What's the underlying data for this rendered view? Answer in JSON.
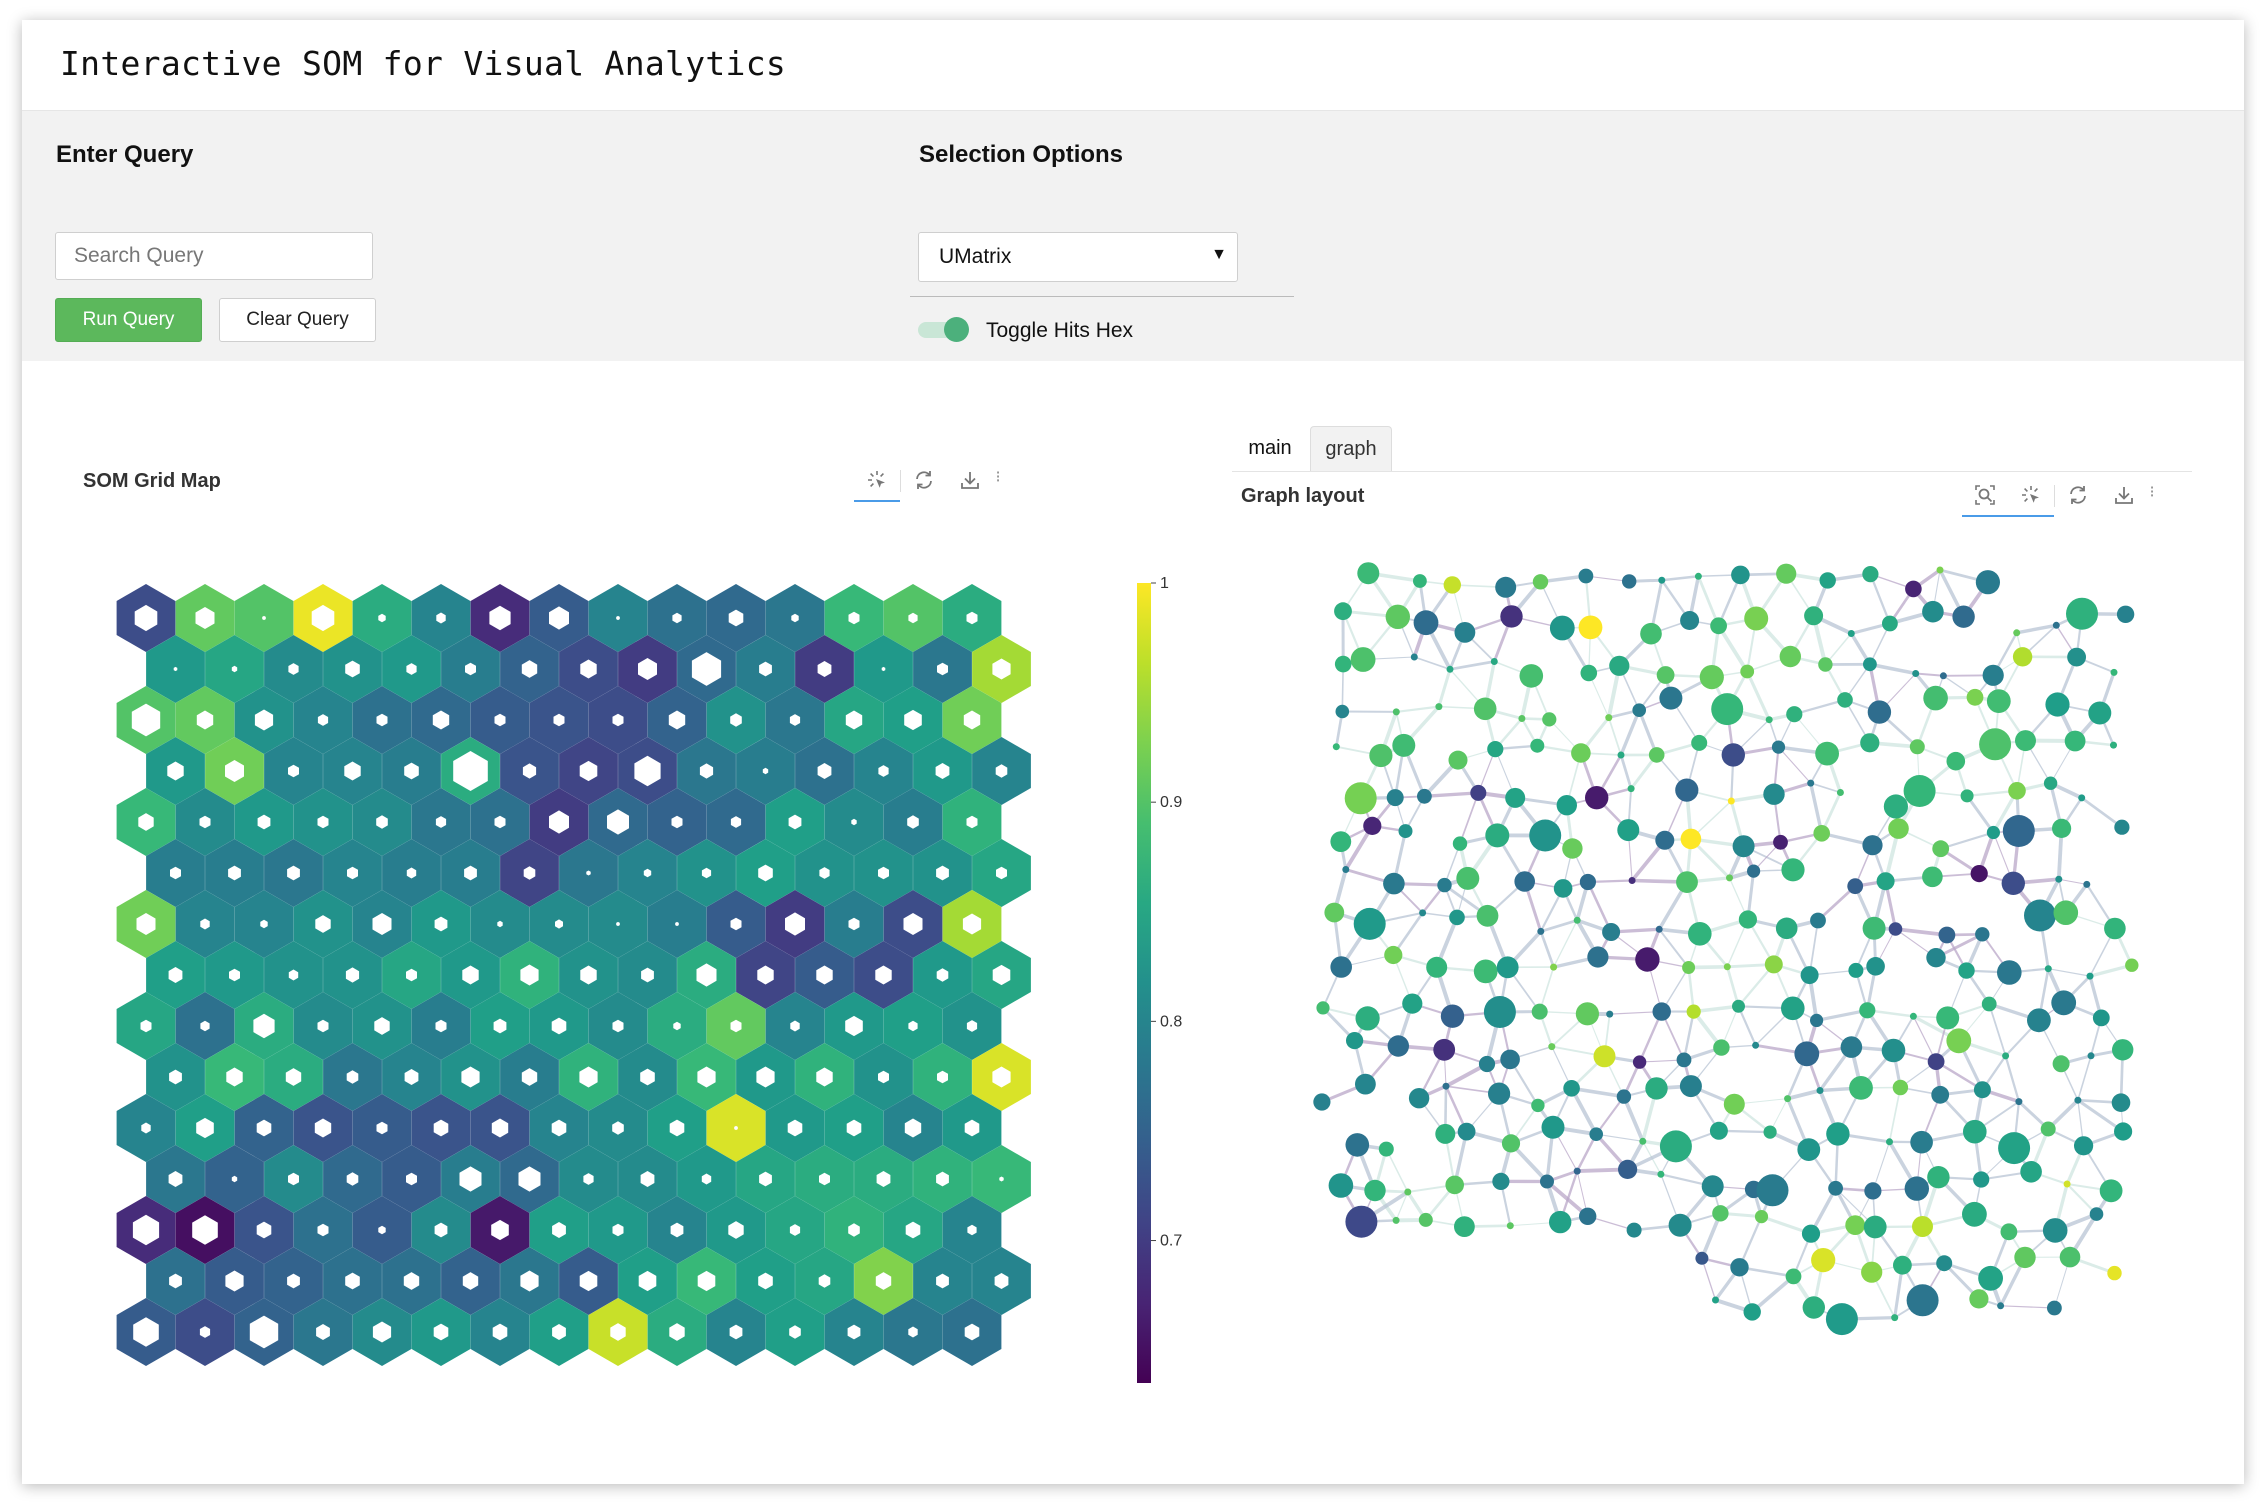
{
  "app": {
    "title": "Interactive SOM for Visual Analytics"
  },
  "query": {
    "heading": "Enter Query",
    "placeholder": "Search Query",
    "run_label": "Run Query",
    "clear_label": "Clear Query"
  },
  "selection": {
    "heading": "Selection Options",
    "selected": "UMatrix",
    "toggle_label": "Toggle Hits Hex",
    "toggle_on": true
  },
  "som": {
    "title": "SOM Grid Map",
    "toolbar": [
      "select-icon",
      "reset-icon",
      "download-icon"
    ],
    "colorbar": {
      "ticks": [
        "1",
        "0.9",
        "0.8",
        "0.7"
      ],
      "tick_values": [
        1,
        0.9,
        0.8,
        0.7
      ],
      "range": [
        0.635,
        1.0
      ]
    },
    "grid": {
      "rows": 15,
      "cols": 15,
      "umatrix": [
        [
          0.72,
          0.91,
          0.9,
          0.99,
          0.86,
          0.8,
          0.68,
          0.74,
          0.8,
          0.77,
          0.76,
          0.78,
          0.88,
          0.9,
          0.86
        ],
        [
          0.83,
          0.85,
          0.81,
          0.82,
          0.83,
          0.79,
          0.75,
          0.72,
          0.7,
          0.76,
          0.79,
          0.7,
          0.83,
          0.78,
          0.95
        ],
        [
          0.9,
          0.91,
          0.82,
          0.8,
          0.77,
          0.76,
          0.74,
          0.73,
          0.72,
          0.75,
          0.82,
          0.78,
          0.85,
          0.84,
          0.92
        ],
        [
          0.83,
          0.92,
          0.8,
          0.8,
          0.79,
          0.86,
          0.73,
          0.71,
          0.72,
          0.78,
          0.79,
          0.77,
          0.8,
          0.83,
          0.8
        ],
        [
          0.88,
          0.81,
          0.83,
          0.82,
          0.81,
          0.78,
          0.77,
          0.7,
          0.76,
          0.75,
          0.76,
          0.84,
          0.81,
          0.79,
          0.87
        ],
        [
          0.79,
          0.79,
          0.78,
          0.8,
          0.79,
          0.79,
          0.71,
          0.78,
          0.8,
          0.82,
          0.84,
          0.82,
          0.82,
          0.82,
          0.85
        ],
        [
          0.92,
          0.8,
          0.8,
          0.82,
          0.8,
          0.83,
          0.81,
          0.81,
          0.81,
          0.79,
          0.74,
          0.7,
          0.79,
          0.72,
          0.95
        ],
        [
          0.84,
          0.83,
          0.82,
          0.82,
          0.85,
          0.83,
          0.87,
          0.82,
          0.81,
          0.86,
          0.71,
          0.74,
          0.72,
          0.83,
          0.85
        ],
        [
          0.85,
          0.77,
          0.86,
          0.81,
          0.82,
          0.79,
          0.84,
          0.83,
          0.81,
          0.86,
          0.91,
          0.8,
          0.83,
          0.84,
          0.82
        ],
        [
          0.82,
          0.88,
          0.86,
          0.78,
          0.8,
          0.82,
          0.79,
          0.87,
          0.81,
          0.88,
          0.83,
          0.87,
          0.82,
          0.87,
          0.98
        ],
        [
          0.8,
          0.84,
          0.75,
          0.73,
          0.74,
          0.73,
          0.73,
          0.8,
          0.81,
          0.84,
          0.98,
          0.83,
          0.84,
          0.8,
          0.83
        ],
        [
          0.78,
          0.75,
          0.81,
          0.76,
          0.74,
          0.79,
          0.76,
          0.81,
          0.81,
          0.83,
          0.85,
          0.86,
          0.86,
          0.87,
          0.88
        ],
        [
          0.68,
          0.65,
          0.73,
          0.77,
          0.74,
          0.81,
          0.66,
          0.84,
          0.83,
          0.8,
          0.83,
          0.85,
          0.87,
          0.85,
          0.8
        ],
        [
          0.77,
          0.74,
          0.75,
          0.77,
          0.77,
          0.75,
          0.78,
          0.74,
          0.84,
          0.88,
          0.84,
          0.85,
          0.93,
          0.8,
          0.8
        ],
        [
          0.74,
          0.72,
          0.75,
          0.78,
          0.81,
          0.83,
          0.8,
          0.84,
          0.97,
          0.86,
          0.8,
          0.84,
          0.8,
          0.78,
          0.77
        ]
      ],
      "hits": [
        [
          0.62,
          0.52,
          0.1,
          0.62,
          0.2,
          0.26,
          0.58,
          0.55,
          0.1,
          0.25,
          0.4,
          0.2,
          0.3,
          0.25,
          0.3
        ],
        [
          0.1,
          0.15,
          0.28,
          0.4,
          0.28,
          0.3,
          0.42,
          0.45,
          0.52,
          0.8,
          0.35,
          0.38,
          0.1,
          0.3,
          0.5
        ],
        [
          0.78,
          0.45,
          0.5,
          0.28,
          0.3,
          0.45,
          0.3,
          0.3,
          0.3,
          0.45,
          0.32,
          0.28,
          0.45,
          0.48,
          0.45
        ],
        [
          0.45,
          0.52,
          0.3,
          0.45,
          0.4,
          0.95,
          0.36,
          0.48,
          0.72,
          0.36,
          0.15,
          0.38,
          0.28,
          0.38,
          0.32
        ],
        [
          0.42,
          0.3,
          0.35,
          0.3,
          0.32,
          0.28,
          0.3,
          0.55,
          0.6,
          0.3,
          0.28,
          0.35,
          0.15,
          0.32,
          0.3
        ],
        [
          0.3,
          0.35,
          0.35,
          0.3,
          0.26,
          0.35,
          0.32,
          0.12,
          0.2,
          0.25,
          0.4,
          0.28,
          0.3,
          0.35,
          0.3
        ],
        [
          0.52,
          0.26,
          0.2,
          0.42,
          0.52,
          0.35,
          0.15,
          0.22,
          0.1,
          0.1,
          0.3,
          0.55,
          0.3,
          0.52,
          0.5
        ],
        [
          0.38,
          0.3,
          0.26,
          0.36,
          0.3,
          0.45,
          0.5,
          0.45,
          0.35,
          0.55,
          0.45,
          0.45,
          0.45,
          0.32,
          0.48
        ],
        [
          0.3,
          0.25,
          0.58,
          0.3,
          0.42,
          0.3,
          0.35,
          0.4,
          0.3,
          0.2,
          0.3,
          0.26,
          0.48,
          0.25,
          0.28
        ],
        [
          0.35,
          0.45,
          0.42,
          0.32,
          0.38,
          0.5,
          0.42,
          0.5,
          0.4,
          0.5,
          0.5,
          0.45,
          0.3,
          0.3,
          0.5
        ],
        [
          0.26,
          0.48,
          0.4,
          0.45,
          0.3,
          0.4,
          0.45,
          0.4,
          0.32,
          0.4,
          0.1,
          0.4,
          0.4,
          0.45,
          0.4
        ],
        [
          0.38,
          0.15,
          0.3,
          0.32,
          0.3,
          0.6,
          0.6,
          0.28,
          0.38,
          0.26,
          0.35,
          0.3,
          0.38,
          0.35,
          0.12
        ],
        [
          0.72,
          0.7,
          0.4,
          0.3,
          0.2,
          0.35,
          0.48,
          0.38,
          0.3,
          0.35,
          0.42,
          0.28,
          0.32,
          0.4,
          0.25
        ],
        [
          0.35,
          0.5,
          0.35,
          0.4,
          0.42,
          0.42,
          0.5,
          0.48,
          0.48,
          0.48,
          0.4,
          0.32,
          0.42,
          0.35,
          0.38
        ],
        [
          0.7,
          0.28,
          0.78,
          0.38,
          0.5,
          0.4,
          0.4,
          0.38,
          0.42,
          0.42,
          0.35,
          0.32,
          0.35,
          0.26,
          0.4
        ]
      ]
    }
  },
  "graph": {
    "tabs": [
      "main",
      "graph"
    ],
    "active_tab": "graph",
    "title": "Graph layout",
    "toolbar": [
      "zoom-icon",
      "select-icon",
      "reset-icon",
      "download-icon"
    ]
  }
}
